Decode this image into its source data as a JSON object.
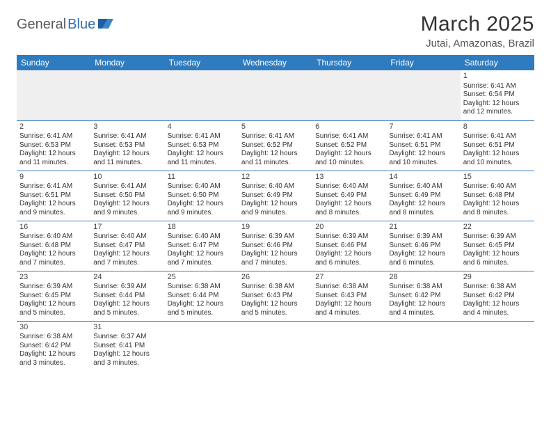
{
  "logo": {
    "part1": "General",
    "part2": "Blue"
  },
  "title": "March 2025",
  "location": "Jutai, Amazonas, Brazil",
  "colors": {
    "header_bg": "#2f7bbf",
    "header_fg": "#ffffff",
    "rule": "#2f7bbf",
    "blank_bg": "#efefef",
    "logo_gray": "#5a5a5a",
    "logo_blue": "#2f6faf"
  },
  "day_headers": [
    "Sunday",
    "Monday",
    "Tuesday",
    "Wednesday",
    "Thursday",
    "Friday",
    "Saturday"
  ],
  "weeks": [
    [
      null,
      null,
      null,
      null,
      null,
      null,
      {
        "n": "1",
        "sr": "Sunrise: 6:41 AM",
        "ss": "Sunset: 6:54 PM",
        "dl": "Daylight: 12 hours and 12 minutes."
      }
    ],
    [
      {
        "n": "2",
        "sr": "Sunrise: 6:41 AM",
        "ss": "Sunset: 6:53 PM",
        "dl": "Daylight: 12 hours and 11 minutes."
      },
      {
        "n": "3",
        "sr": "Sunrise: 6:41 AM",
        "ss": "Sunset: 6:53 PM",
        "dl": "Daylight: 12 hours and 11 minutes."
      },
      {
        "n": "4",
        "sr": "Sunrise: 6:41 AM",
        "ss": "Sunset: 6:53 PM",
        "dl": "Daylight: 12 hours and 11 minutes."
      },
      {
        "n": "5",
        "sr": "Sunrise: 6:41 AM",
        "ss": "Sunset: 6:52 PM",
        "dl": "Daylight: 12 hours and 11 minutes."
      },
      {
        "n": "6",
        "sr": "Sunrise: 6:41 AM",
        "ss": "Sunset: 6:52 PM",
        "dl": "Daylight: 12 hours and 10 minutes."
      },
      {
        "n": "7",
        "sr": "Sunrise: 6:41 AM",
        "ss": "Sunset: 6:51 PM",
        "dl": "Daylight: 12 hours and 10 minutes."
      },
      {
        "n": "8",
        "sr": "Sunrise: 6:41 AM",
        "ss": "Sunset: 6:51 PM",
        "dl": "Daylight: 12 hours and 10 minutes."
      }
    ],
    [
      {
        "n": "9",
        "sr": "Sunrise: 6:41 AM",
        "ss": "Sunset: 6:51 PM",
        "dl": "Daylight: 12 hours and 9 minutes."
      },
      {
        "n": "10",
        "sr": "Sunrise: 6:41 AM",
        "ss": "Sunset: 6:50 PM",
        "dl": "Daylight: 12 hours and 9 minutes."
      },
      {
        "n": "11",
        "sr": "Sunrise: 6:40 AM",
        "ss": "Sunset: 6:50 PM",
        "dl": "Daylight: 12 hours and 9 minutes."
      },
      {
        "n": "12",
        "sr": "Sunrise: 6:40 AM",
        "ss": "Sunset: 6:49 PM",
        "dl": "Daylight: 12 hours and 9 minutes."
      },
      {
        "n": "13",
        "sr": "Sunrise: 6:40 AM",
        "ss": "Sunset: 6:49 PM",
        "dl": "Daylight: 12 hours and 8 minutes."
      },
      {
        "n": "14",
        "sr": "Sunrise: 6:40 AM",
        "ss": "Sunset: 6:49 PM",
        "dl": "Daylight: 12 hours and 8 minutes."
      },
      {
        "n": "15",
        "sr": "Sunrise: 6:40 AM",
        "ss": "Sunset: 6:48 PM",
        "dl": "Daylight: 12 hours and 8 minutes."
      }
    ],
    [
      {
        "n": "16",
        "sr": "Sunrise: 6:40 AM",
        "ss": "Sunset: 6:48 PM",
        "dl": "Daylight: 12 hours and 7 minutes."
      },
      {
        "n": "17",
        "sr": "Sunrise: 6:40 AM",
        "ss": "Sunset: 6:47 PM",
        "dl": "Daylight: 12 hours and 7 minutes."
      },
      {
        "n": "18",
        "sr": "Sunrise: 6:40 AM",
        "ss": "Sunset: 6:47 PM",
        "dl": "Daylight: 12 hours and 7 minutes."
      },
      {
        "n": "19",
        "sr": "Sunrise: 6:39 AM",
        "ss": "Sunset: 6:46 PM",
        "dl": "Daylight: 12 hours and 7 minutes."
      },
      {
        "n": "20",
        "sr": "Sunrise: 6:39 AM",
        "ss": "Sunset: 6:46 PM",
        "dl": "Daylight: 12 hours and 6 minutes."
      },
      {
        "n": "21",
        "sr": "Sunrise: 6:39 AM",
        "ss": "Sunset: 6:46 PM",
        "dl": "Daylight: 12 hours and 6 minutes."
      },
      {
        "n": "22",
        "sr": "Sunrise: 6:39 AM",
        "ss": "Sunset: 6:45 PM",
        "dl": "Daylight: 12 hours and 6 minutes."
      }
    ],
    [
      {
        "n": "23",
        "sr": "Sunrise: 6:39 AM",
        "ss": "Sunset: 6:45 PM",
        "dl": "Daylight: 12 hours and 5 minutes."
      },
      {
        "n": "24",
        "sr": "Sunrise: 6:39 AM",
        "ss": "Sunset: 6:44 PM",
        "dl": "Daylight: 12 hours and 5 minutes."
      },
      {
        "n": "25",
        "sr": "Sunrise: 6:38 AM",
        "ss": "Sunset: 6:44 PM",
        "dl": "Daylight: 12 hours and 5 minutes."
      },
      {
        "n": "26",
        "sr": "Sunrise: 6:38 AM",
        "ss": "Sunset: 6:43 PM",
        "dl": "Daylight: 12 hours and 5 minutes."
      },
      {
        "n": "27",
        "sr": "Sunrise: 6:38 AM",
        "ss": "Sunset: 6:43 PM",
        "dl": "Daylight: 12 hours and 4 minutes."
      },
      {
        "n": "28",
        "sr": "Sunrise: 6:38 AM",
        "ss": "Sunset: 6:42 PM",
        "dl": "Daylight: 12 hours and 4 minutes."
      },
      {
        "n": "29",
        "sr": "Sunrise: 6:38 AM",
        "ss": "Sunset: 6:42 PM",
        "dl": "Daylight: 12 hours and 4 minutes."
      }
    ],
    [
      {
        "n": "30",
        "sr": "Sunrise: 6:38 AM",
        "ss": "Sunset: 6:42 PM",
        "dl": "Daylight: 12 hours and 3 minutes."
      },
      {
        "n": "31",
        "sr": "Sunrise: 6:37 AM",
        "ss": "Sunset: 6:41 PM",
        "dl": "Daylight: 12 hours and 3 minutes."
      },
      null,
      null,
      null,
      null,
      null
    ]
  ]
}
